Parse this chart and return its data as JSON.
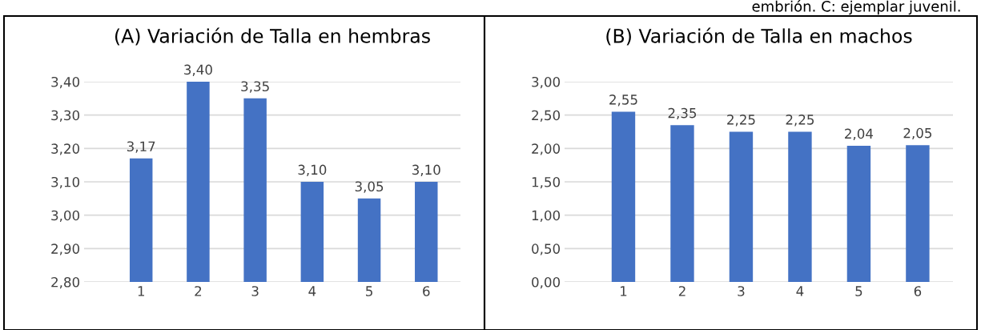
{
  "chart_data": [
    {
      "type": "bar",
      "title": "(A) Variación de Talla en hembras",
      "categories": [
        "1",
        "2",
        "3",
        "4",
        "5",
        "6"
      ],
      "values": [
        3.17,
        3.4,
        3.35,
        3.1,
        3.05,
        3.1
      ],
      "color": "#4472c4",
      "value_labels": [
        "3,17",
        "3,40",
        "3,35",
        "3,10",
        "3,05",
        "3,10"
      ],
      "ylim": [
        2.8,
        3.4
      ],
      "yticks": [
        {
          "value": 2.8,
          "label": "2,80"
        },
        {
          "value": 2.9,
          "label": "2,90"
        },
        {
          "value": 3.0,
          "label": "3,00"
        },
        {
          "value": 3.1,
          "label": "3,10"
        },
        {
          "value": 3.2,
          "label": "3,20"
        },
        {
          "value": 3.3,
          "label": "3,30"
        },
        {
          "value": 3.4,
          "label": "3,40"
        }
      ],
      "grid": "y",
      "legend": false
    },
    {
      "type": "bar",
      "title": "(B) Variación de Talla en machos",
      "categories": [
        "1",
        "2",
        "3",
        "4",
        "5",
        "6"
      ],
      "values": [
        2.55,
        2.35,
        2.25,
        2.25,
        2.04,
        2.05
      ],
      "color": "#4472c4",
      "value_labels": [
        "2,55",
        "2,35",
        "2,25",
        "2,25",
        "2,04",
        "2,05"
      ],
      "ylim": [
        0,
        3.0
      ],
      "yticks": [
        {
          "value": 0,
          "label": "0,00"
        },
        {
          "value": 0.5,
          "label": "0,50"
        },
        {
          "value": 1.0,
          "label": "1,00"
        },
        {
          "value": 1.5,
          "label": "1,50"
        },
        {
          "value": 2.0,
          "label": "2,00"
        },
        {
          "value": 2.5,
          "label": "2,50"
        },
        {
          "value": 3.0,
          "label": "3,00"
        }
      ],
      "grid": "y",
      "legend": false,
      "annotations": [
        "embrión. C: ejemplar juvenil."
      ]
    }
  ]
}
